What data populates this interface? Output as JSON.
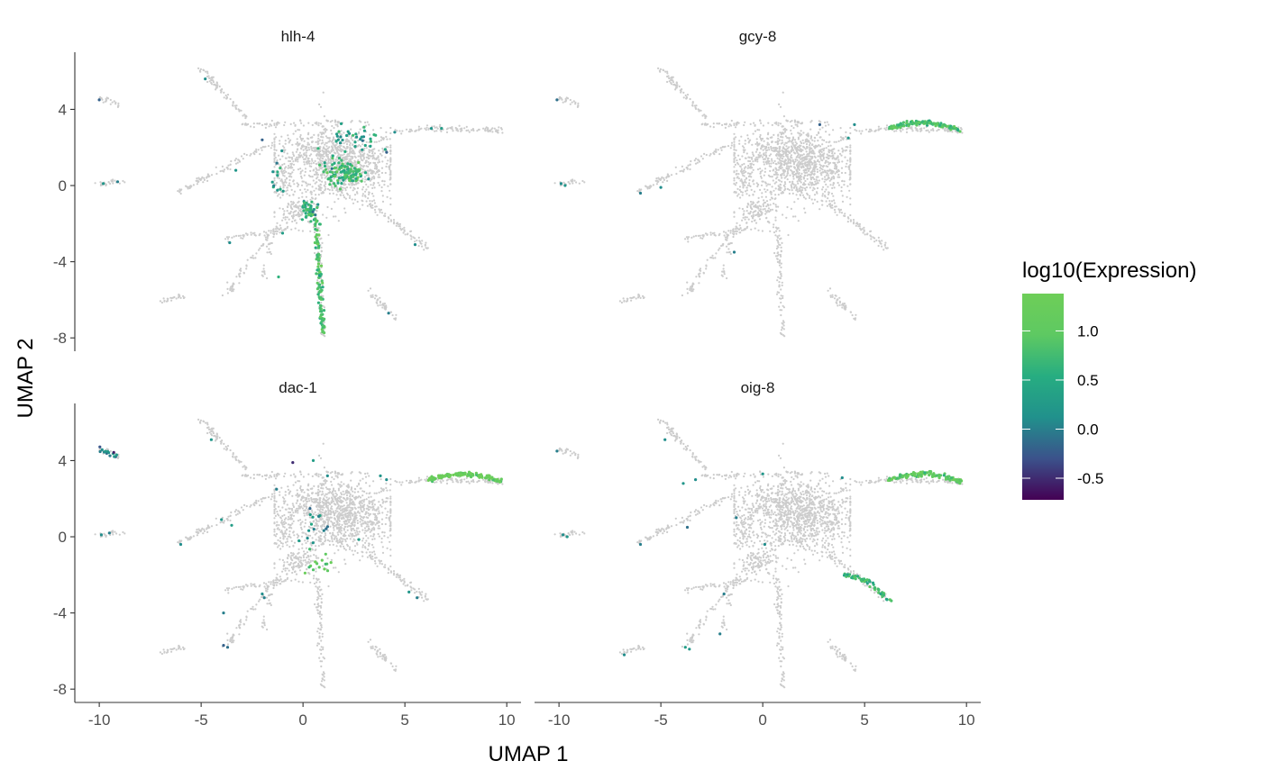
{
  "chart_data": {
    "type": "scatter",
    "xlabel": "UMAP 1",
    "ylabel": "UMAP 2",
    "xlim": [
      -11.2,
      10.7
    ],
    "ylim": [
      -8.7,
      7.0
    ],
    "x_ticks": [
      -10,
      -5,
      0,
      5,
      10
    ],
    "y_ticks": [
      4,
      0,
      -4,
      -8
    ],
    "x_tick_labels": [
      "-10",
      "-5",
      "0",
      "5",
      "10"
    ],
    "y_tick_labels": [
      "4",
      "0",
      "-4",
      "-8"
    ],
    "grid": false,
    "background_point_color": "#cccccc",
    "legend": {
      "title": "log10(Expression)",
      "placement": "right",
      "range": [
        -0.72,
        1.38
      ],
      "ticks": [
        1.0,
        0.5,
        0.0,
        -0.5
      ],
      "tick_labels": [
        "1.0",
        "0.5",
        "0.0",
        "-0.5"
      ],
      "colors": [
        "#440154",
        "#3b528b",
        "#21918c",
        "#27ad81",
        "#5ec962",
        "#6ece58"
      ]
    },
    "panels": [
      {
        "name": "hlh-4",
        "expressed_segments": [
          {
            "from": [
              0.6,
              -2.0
            ],
            "to": [
              1.0,
              -7.8
            ],
            "value": 0.85,
            "n": 95
          },
          {
            "from": [
              0.0,
              -1.0
            ],
            "to": [
              0.8,
              -2.0
            ],
            "value": 0.75,
            "n": 25
          }
        ],
        "expressed_blobs": [
          {
            "center": [
              2.0,
              0.7
            ],
            "spread": [
              1.0,
              0.6
            ],
            "value": 0.7,
            "n": 110
          },
          {
            "center": [
              2.6,
              2.3
            ],
            "spread": [
              1.3,
              0.8
            ],
            "value": 0.3,
            "n": 35
          },
          {
            "center": [
              0.3,
              -1.2
            ],
            "spread": [
              0.5,
              0.5
            ],
            "value": 0.55,
            "n": 30
          },
          {
            "center": [
              -1.2,
              0.6
            ],
            "spread": [
              0.4,
              0.9
            ],
            "value": 0.45,
            "n": 12
          }
        ],
        "expressed_points": [
          [
            -4.8,
            5.6,
            0.1
          ],
          [
            -10.0,
            4.5,
            -0.2
          ],
          [
            -3.3,
            0.8,
            0.2
          ],
          [
            -3.6,
            -3.0,
            0.1
          ],
          [
            -1.2,
            -4.8,
            0.6
          ],
          [
            -1.0,
            -2.5,
            0.3
          ],
          [
            5.5,
            -3.1,
            0.1
          ],
          [
            6.3,
            3.0,
            0.2
          ],
          [
            6.8,
            3.0,
            0.3
          ],
          [
            4.2,
            -6.7,
            0.0
          ],
          [
            -9.8,
            0.1,
            0.2
          ],
          [
            -9.1,
            0.2,
            0.0
          ],
          [
            -2.0,
            2.4,
            -0.2
          ],
          [
            4.5,
            2.8,
            0.1
          ]
        ]
      },
      {
        "name": "gcy-8",
        "expressed_segments": [
          {
            "from": [
              6.2,
              3.0
            ],
            "to": [
              9.7,
              2.9
            ],
            "value": 0.9,
            "n": 120
          }
        ],
        "expressed_blobs": [],
        "expressed_points": [
          [
            -6.0,
            -0.4,
            0.0
          ],
          [
            -5.0,
            -0.1,
            0.1
          ],
          [
            -1.4,
            -3.5,
            0.0
          ],
          [
            4.5,
            3.2,
            0.1
          ],
          [
            4.2,
            2.5,
            0.2
          ],
          [
            2.8,
            3.2,
            -0.2
          ],
          [
            -10.1,
            4.5,
            -0.1
          ],
          [
            -9.9,
            0.1,
            0.1
          ],
          [
            -9.7,
            0.0,
            0.2
          ]
        ]
      },
      {
        "name": "dac-1",
        "expressed_segments": [
          {
            "from": [
              6.2,
              3.0
            ],
            "to": [
              9.7,
              2.9
            ],
            "value": 1.2,
            "n": 120
          },
          {
            "from": [
              -10.0,
              4.6
            ],
            "to": [
              -9.1,
              4.2
            ],
            "value": 0.05,
            "n": 14
          }
        ],
        "expressed_blobs": [
          {
            "center": [
              0.7,
              -1.5
            ],
            "spread": [
              0.8,
              0.5
            ],
            "value": 0.9,
            "n": 14
          },
          {
            "center": [
              0.6,
              0.4
            ],
            "spread": [
              1.0,
              1.2
            ],
            "value": 0.3,
            "n": 16
          }
        ],
        "expressed_points": [
          [
            -0.5,
            3.9,
            -0.5
          ],
          [
            -3.9,
            -5.7,
            -0.2
          ],
          [
            -3.7,
            -5.8,
            -0.1
          ],
          [
            -3.9,
            -4.0,
            0.0
          ],
          [
            -6.0,
            -0.4,
            0.1
          ],
          [
            -3.5,
            0.6,
            0.3
          ],
          [
            -4.0,
            0.9,
            0.2
          ],
          [
            -1.9,
            -3.2,
            0.0
          ],
          [
            -2.0,
            -3.0,
            0.1
          ],
          [
            5.2,
            -2.9,
            0.2
          ],
          [
            5.6,
            -3.2,
            0.0
          ],
          [
            3.8,
            3.2,
            0.2
          ],
          [
            4.1,
            3.0,
            0.1
          ],
          [
            -4.5,
            5.1,
            0.2
          ],
          [
            -9.9,
            0.1,
            0.1
          ],
          [
            -9.5,
            0.2,
            0.0
          ],
          [
            1.2,
            3.2,
            0.1
          ],
          [
            -1.3,
            2.5,
            0.0
          ],
          [
            0.5,
            4.0,
            0.3
          ]
        ]
      },
      {
        "name": "oig-8",
        "expressed_segments": [
          {
            "from": [
              6.2,
              3.0
            ],
            "to": [
              9.7,
              2.9
            ],
            "value": 1.0,
            "n": 110
          },
          {
            "from": [
              4.0,
              -2.0
            ],
            "to": [
              6.2,
              -3.4
            ],
            "value": 0.7,
            "n": 55
          }
        ],
        "expressed_blobs": [],
        "expressed_points": [
          [
            -4.8,
            5.1,
            0.1
          ],
          [
            -6.0,
            -0.4,
            0.0
          ],
          [
            -3.7,
            0.5,
            -0.1
          ],
          [
            -3.9,
            2.8,
            0.2
          ],
          [
            -3.3,
            3.0,
            0.1
          ],
          [
            -1.3,
            1.0,
            0.0
          ],
          [
            0.1,
            -0.4,
            0.1
          ],
          [
            -2.1,
            -5.1,
            0.0
          ],
          [
            -3.8,
            -5.8,
            0.3
          ],
          [
            -3.6,
            -5.9,
            0.2
          ],
          [
            -6.8,
            -6.2,
            0.1
          ],
          [
            -1.9,
            -3.0,
            0.0
          ],
          [
            0.0,
            3.3,
            0.2
          ],
          [
            3.9,
            3.1,
            0.1
          ],
          [
            -10.1,
            4.5,
            0.0
          ],
          [
            -9.8,
            0.1,
            0.1
          ],
          [
            -9.6,
            0.0,
            0.2
          ]
        ]
      }
    ],
    "background_structure": {
      "blobs": [
        {
          "center": [
            2.0,
            1.0
          ],
          "spread": [
            2.6,
            2.0
          ],
          "n": 900
        },
        {
          "center": [
            0.6,
            1.6
          ],
          "spread": [
            2.8,
            1.4
          ],
          "n": 300
        },
        {
          "center": [
            -0.2,
            -1.4
          ],
          "spread": [
            1.0,
            0.8
          ],
          "n": 120
        },
        {
          "center": [
            -1.0,
            0.2
          ],
          "spread": [
            0.5,
            1.2
          ],
          "n": 60
        }
      ],
      "segments": [
        {
          "from": [
            -5.1,
            6.2
          ],
          "to": [
            -2.7,
            3.5
          ],
          "n": 70
        },
        {
          "from": [
            -3.0,
            3.2
          ],
          "to": [
            2.0,
            3.3
          ],
          "n": 60
        },
        {
          "from": [
            -10.0,
            4.6
          ],
          "to": [
            -9.0,
            4.2
          ],
          "n": 25
        },
        {
          "from": [
            -10.0,
            0.0
          ],
          "to": [
            -8.8,
            0.3
          ],
          "n": 25
        },
        {
          "from": [
            -6.3,
            -0.4
          ],
          "to": [
            -1.5,
            2.2
          ],
          "n": 90
        },
        {
          "from": [
            -3.8,
            -2.8
          ],
          "to": [
            -0.5,
            -2.2
          ],
          "n": 50
        },
        {
          "from": [
            -3.8,
            -5.8
          ],
          "to": [
            -2.3,
            -3.5
          ],
          "n": 40
        },
        {
          "from": [
            -2.3,
            -3.5
          ],
          "to": [
            -0.8,
            -1.5
          ],
          "n": 30
        },
        {
          "from": [
            -2.0,
            -5.0
          ],
          "to": [
            -1.4,
            -2.4
          ],
          "n": 25
        },
        {
          "from": [
            -7.0,
            -6.1
          ],
          "to": [
            -5.9,
            -5.8
          ],
          "n": 25
        },
        {
          "from": [
            0.7,
            -2.0
          ],
          "to": [
            1.0,
            -7.8
          ],
          "n": 90
        },
        {
          "from": [
            3.3,
            -1.0
          ],
          "to": [
            6.2,
            -3.4
          ],
          "n": 70
        },
        {
          "from": [
            3.3,
            -5.6
          ],
          "to": [
            4.6,
            -7.0
          ],
          "n": 40
        },
        {
          "from": [
            6.0,
            3.0
          ],
          "to": [
            9.7,
            2.9
          ],
          "n": 80
        },
        {
          "from": [
            4.6,
            2.8
          ],
          "to": [
            6.0,
            3.0
          ],
          "n": 20
        },
        {
          "from": [
            1.0,
            5.3
          ],
          "to": [
            1.0,
            2.0
          ],
          "n": 10
        }
      ]
    }
  }
}
